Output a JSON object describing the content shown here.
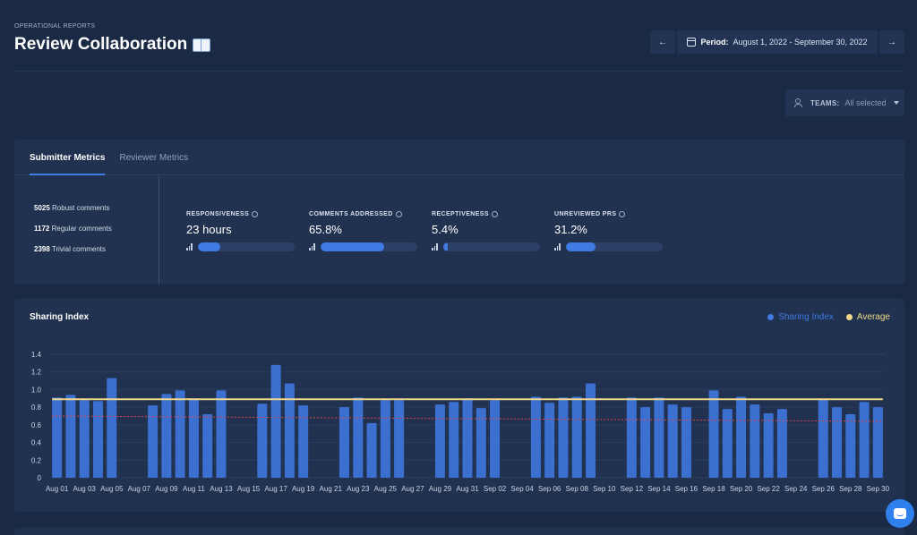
{
  "header": {
    "eyebrow": "OPERATIONAL REPORTS",
    "title": "Review Collaboration"
  },
  "period": {
    "label": "Period:",
    "value": "August 1, 2022 - September 30, 2022",
    "prev_icon": "arrow-left-icon",
    "next_icon": "arrow-right-icon"
  },
  "teams": {
    "label": "TEAMS:",
    "value": "All selected"
  },
  "tabs": [
    {
      "label": "Submitter Metrics",
      "active": true
    },
    {
      "label": "Reviewer Metrics",
      "active": false
    }
  ],
  "counts": [
    {
      "value": "5025",
      "label": "Robust comments"
    },
    {
      "value": "1172",
      "label": "Regular comments"
    },
    {
      "value": "2398",
      "label": "Trivial comments"
    }
  ],
  "metrics": [
    {
      "label": "RESPONSIVENESS",
      "value": "23 hours",
      "fill": 0.24
    },
    {
      "label": "COMMENTS ADDRESSED",
      "value": "65.8%",
      "fill": 0.658
    },
    {
      "label": "RECEPTIVENESS",
      "value": "5.4%",
      "fill": 0.054
    },
    {
      "label": "UNREVIEWED PRS",
      "value": "31.2%",
      "fill": 0.312
    }
  ],
  "colors": {
    "bar": "#3b6fd0",
    "average": "#f2d88a",
    "trend": "#e04848",
    "accent": "#3f7be3"
  },
  "chart_data": {
    "type": "bar",
    "title": "Sharing Index",
    "legend": [
      {
        "name": "Sharing Index",
        "color": "#3f7be3"
      },
      {
        "name": "Average",
        "color": "#f2d88a"
      }
    ],
    "legend_position": "top-right",
    "ylim": [
      0,
      1.4
    ],
    "yticks": [
      0,
      0.2,
      0.4,
      0.6,
      0.8,
      1.0,
      1.2,
      1.4
    ],
    "grid": true,
    "average": 0.89,
    "trend_line": [
      0.7,
      0.64
    ],
    "categories": [
      "Aug 01",
      "Aug 02",
      "Aug 03",
      "Aug 04",
      "Aug 05",
      "Aug 06",
      "Aug 07",
      "Aug 08",
      "Aug 09",
      "Aug 10",
      "Aug 11",
      "Aug 12",
      "Aug 13",
      "Aug 14",
      "Aug 15",
      "Aug 16",
      "Aug 17",
      "Aug 18",
      "Aug 19",
      "Aug 20",
      "Aug 21",
      "Aug 22",
      "Aug 23",
      "Aug 24",
      "Aug 25",
      "Aug 26",
      "Aug 27",
      "Aug 28",
      "Aug 29",
      "Aug 30",
      "Aug 31",
      "Sep 01",
      "Sep 02",
      "Sep 03",
      "Sep 04",
      "Sep 05",
      "Sep 06",
      "Sep 07",
      "Sep 08",
      "Sep 09",
      "Sep 10",
      "Sep 11",
      "Sep 12",
      "Sep 13",
      "Sep 14",
      "Sep 15",
      "Sep 16",
      "Sep 17",
      "Sep 18",
      "Sep 19",
      "Sep 20",
      "Sep 21",
      "Sep 22",
      "Sep 23",
      "Sep 24",
      "Sep 25",
      "Sep 26",
      "Sep 27",
      "Sep 28",
      "Sep 29",
      "Sep 30"
    ],
    "tick_labels": [
      "Aug 01",
      "Aug 03",
      "Aug 05",
      "Aug 07",
      "Aug 09",
      "Aug 11",
      "Aug 13",
      "Aug 15",
      "Aug 17",
      "Aug 19",
      "Aug 21",
      "Aug 23",
      "Aug 25",
      "Aug 27",
      "Aug 29",
      "Aug 31",
      "Sep 02",
      "Sep 04",
      "Sep 06",
      "Sep 08",
      "Sep 10",
      "Sep 12",
      "Sep 14",
      "Sep 16",
      "Sep 18",
      "Sep 20",
      "Sep 22",
      "Sep 24",
      "Sep 26",
      "Sep 28",
      "Sep 30"
    ],
    "values": [
      0.91,
      0.94,
      0.88,
      0.87,
      1.13,
      0,
      0,
      0.82,
      0.95,
      0.99,
      0.9,
      0.72,
      0.99,
      0,
      0,
      0.84,
      1.28,
      1.07,
      0.82,
      0,
      0,
      0.8,
      0.91,
      0.62,
      0.88,
      0.88,
      0,
      0,
      0.83,
      0.86,
      0.9,
      0.79,
      0.88,
      0,
      0,
      0.92,
      0.85,
      0.91,
      0.92,
      1.07,
      0,
      0,
      0.91,
      0.8,
      0.91,
      0.83,
      0.8,
      0,
      0.99,
      0.78,
      0.92,
      0.83,
      0.73,
      0.78,
      0,
      0,
      0.89,
      0.8,
      0.72,
      0.86,
      0.8
    ]
  }
}
